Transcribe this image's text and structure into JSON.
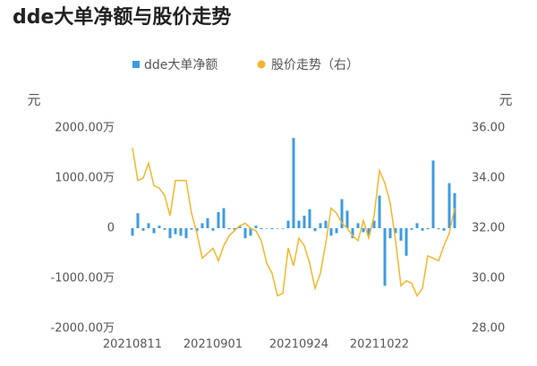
{
  "chart_data": {
    "type": "bar-line",
    "title": "dde大单净额与股价走势",
    "y_unit": "元",
    "y2_unit": "元",
    "categories": [
      "20210811",
      null,
      null,
      null,
      null,
      null,
      null,
      null,
      null,
      null,
      null,
      null,
      null,
      null,
      null,
      "20210901",
      null,
      null,
      null,
      null,
      null,
      null,
      null,
      null,
      null,
      null,
      null,
      null,
      null,
      null,
      null,
      "20210924",
      null,
      null,
      null,
      null,
      null,
      null,
      null,
      null,
      null,
      null,
      null,
      null,
      null,
      null,
      "20211022",
      null,
      null,
      null,
      null,
      null,
      null,
      null,
      null,
      null,
      null,
      null,
      null,
      null,
      null
    ],
    "series": [
      {
        "name": "dde大单净额",
        "color": "#3d9be3",
        "values": [
          -150,
          300,
          -50,
          100,
          -100,
          50,
          -30,
          -200,
          -120,
          -150,
          -200,
          -30,
          -60,
          100,
          200,
          -50,
          320,
          400,
          -20,
          -30,
          50,
          -200,
          -150,
          50,
          -20,
          -10,
          -20,
          -10,
          -10,
          150,
          1800,
          150,
          250,
          380,
          -60,
          100,
          150,
          -150,
          -100,
          580,
          350,
          -200,
          100,
          -80,
          -150,
          150,
          650,
          -1150,
          -200,
          -100,
          -250,
          -550,
          -30,
          100,
          -50,
          -20,
          1350,
          -20,
          -50,
          900,
          700
        ]
      },
      {
        "name": "股价走势（右）",
        "color": "#f5b62b",
        "axis": "y2",
        "values": [
          35.2,
          33.9,
          34.0,
          34.6,
          33.7,
          33.6,
          33.3,
          32.5,
          33.9,
          33.9,
          33.9,
          32.6,
          31.8,
          30.8,
          31.0,
          31.2,
          30.7,
          31.3,
          31.7,
          31.9,
          32.1,
          32.2,
          32.0,
          31.9,
          31.5,
          30.6,
          30.2,
          29.3,
          29.4,
          31.2,
          30.5,
          31.6,
          31.3,
          30.6,
          29.6,
          30.2,
          31.4,
          32.8,
          32.6,
          32.2,
          32.0,
          31.7,
          31.5,
          32.3,
          31.6,
          32.5,
          34.3,
          33.8,
          33.0,
          31.5,
          29.7,
          29.9,
          29.8,
          29.3,
          29.6,
          30.9,
          30.8,
          30.7,
          31.3,
          31.8,
          32.8
        ]
      }
    ],
    "ylim": [
      -2000,
      2000
    ],
    "yticks": [
      {
        "value": -2000,
        "label": "-2000.00万"
      },
      {
        "value": -1000,
        "label": "-1000.00万"
      },
      0,
      {
        "value": 1000,
        "label": "1000.00万"
      },
      {
        "value": 2000,
        "label": "2000.00万"
      }
    ],
    "y2lim": [
      28,
      36
    ],
    "y2ticks": [
      {
        "value": 28,
        "label": "28.00"
      },
      {
        "value": 30,
        "label": "30.00"
      },
      {
        "value": 32,
        "label": "32.00"
      },
      {
        "value": 34,
        "label": "34.00"
      },
      {
        "value": 36,
        "label": "36.00"
      }
    ]
  }
}
